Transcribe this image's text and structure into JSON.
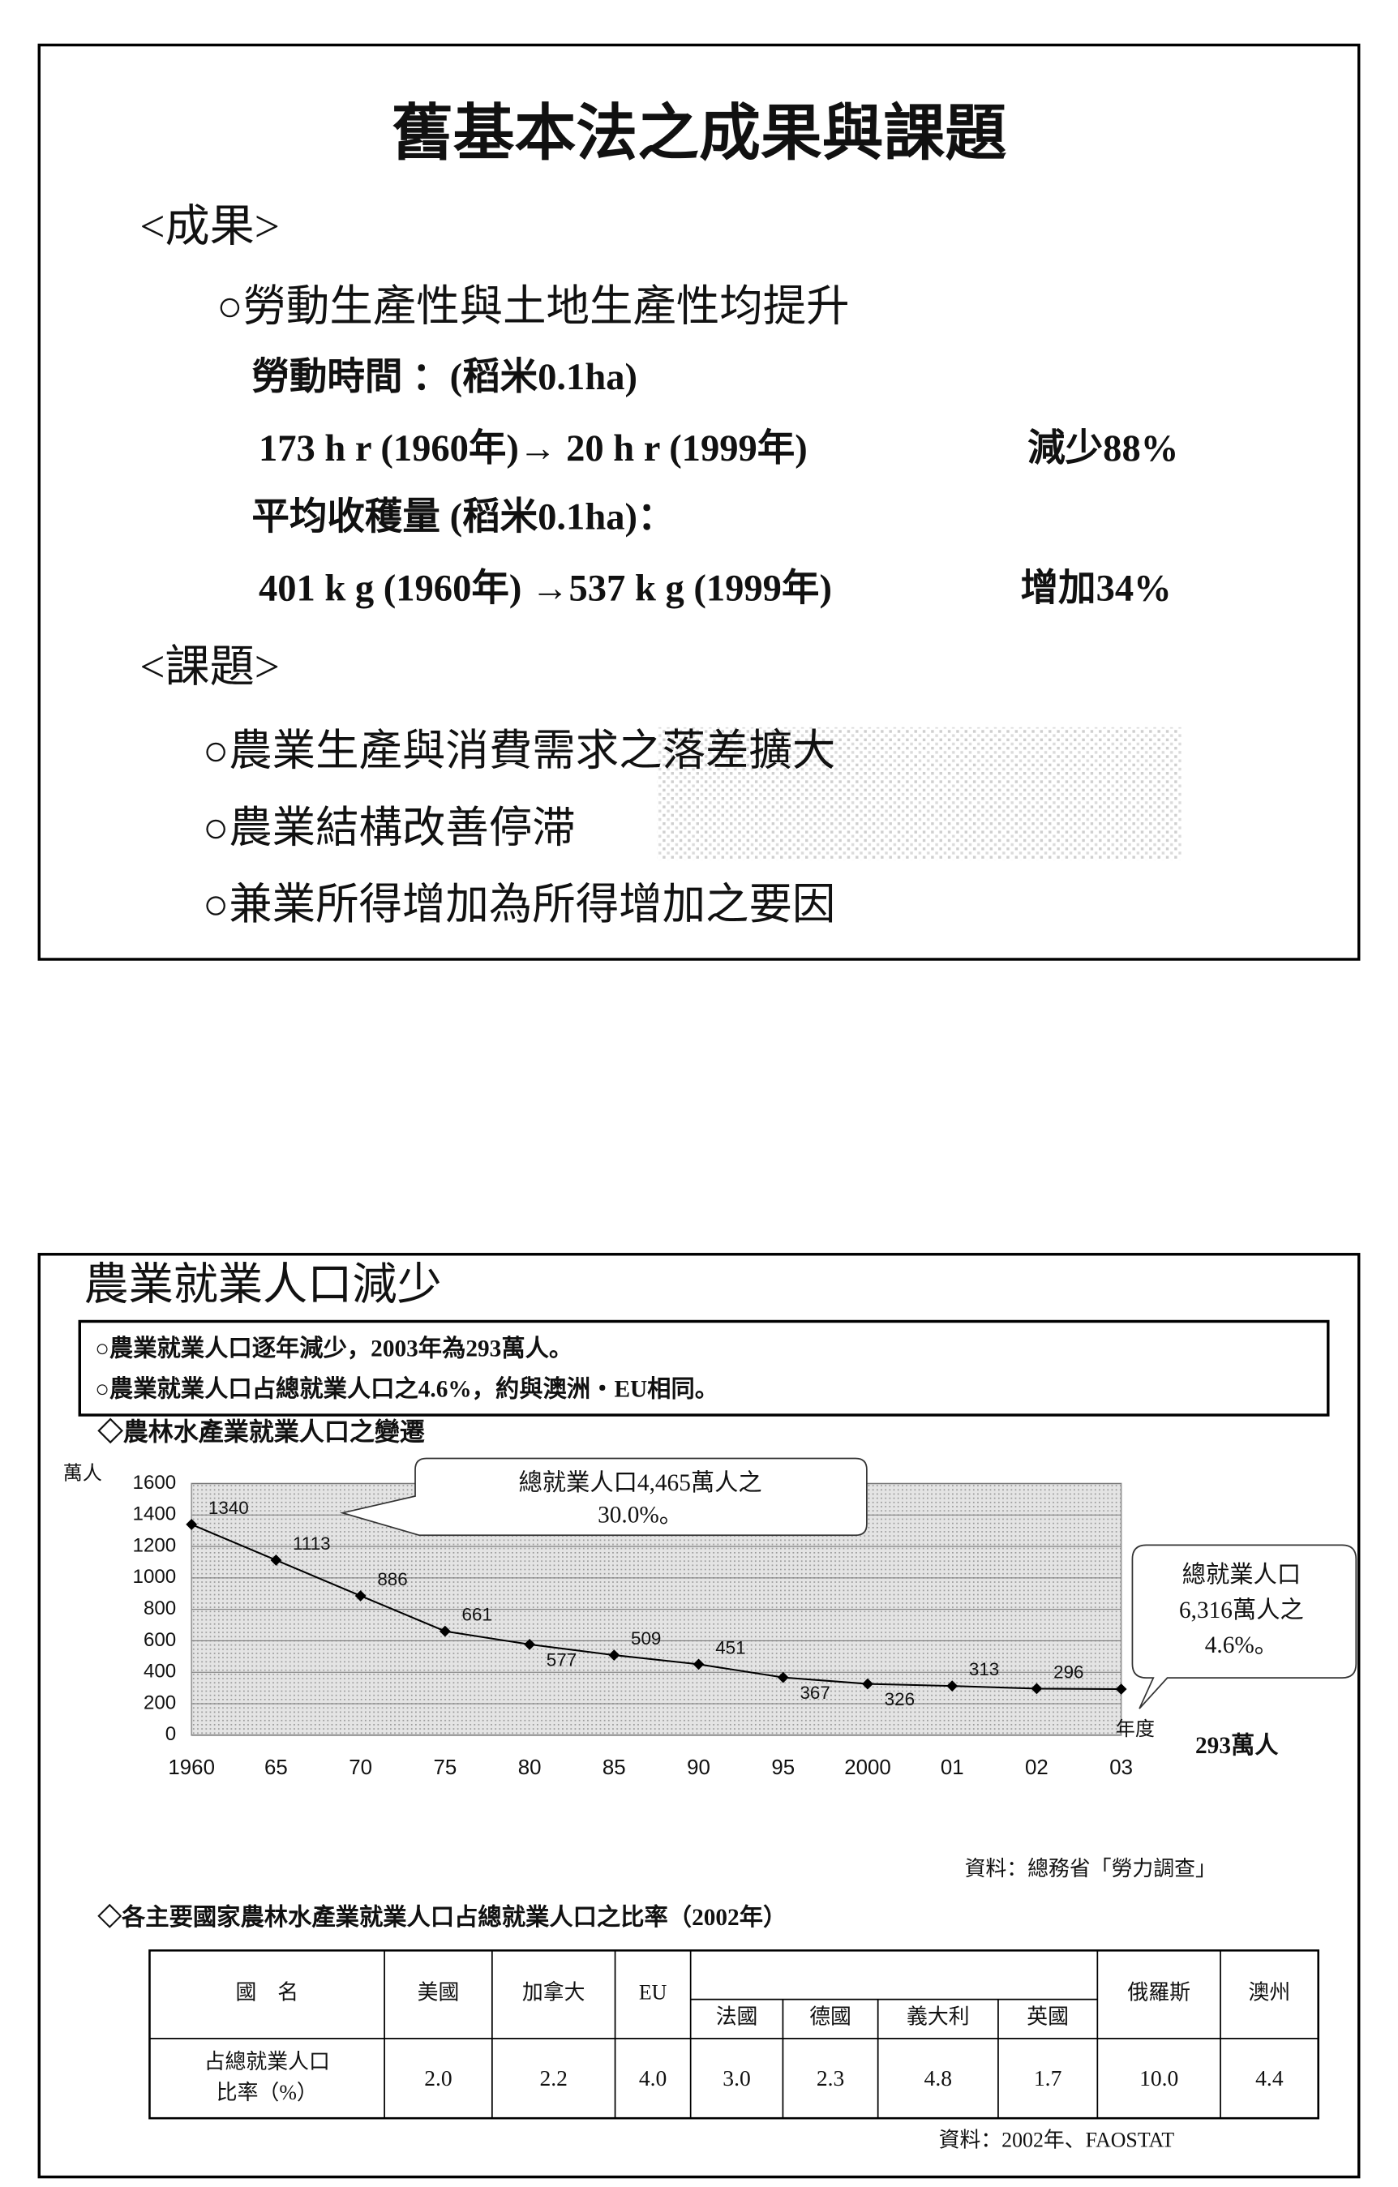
{
  "slide1": {
    "title": "舊基本法之成果與課題",
    "results": {
      "heading": "<成果>",
      "point": "○勞動生產性與土地生產性均提升",
      "lines": [
        "勞動時間 ：(稻米0.1ha)",
        "173 h r (1960年)→  20 h r (1999年)",
        "平均收穫量 (稻米0.1ha)：",
        "401 k g (1960年) →537 k g (1999年)"
      ],
      "changes": [
        "減少88%",
        "增加34%"
      ]
    },
    "issues": {
      "heading": "<課題>",
      "items": [
        "○農業生產與消費需求之落差擴大",
        "○農業結構改善停滞",
        "○兼業所得增加為所得增加之要因"
      ]
    }
  },
  "slide2": {
    "title": "農業就業人口減少",
    "bullets": [
      "○農業就業人口逐年減少，2003年為293萬人。",
      "○農業就業人口占總就業人口之4.6%，約與澳洲・EU相同。"
    ],
    "chart": {
      "type": "line",
      "title": "◇農林水產業就業人口之變遷",
      "y_label": "萬人",
      "x_label": "年度",
      "categories": [
        "1960",
        "65",
        "70",
        "75",
        "80",
        "85",
        "90",
        "95",
        "2000",
        "01",
        "02",
        "03"
      ],
      "values": [
        1340,
        1113,
        886,
        661,
        577,
        509,
        451,
        367,
        326,
        313,
        296,
        293
      ],
      "ylim": [
        0,
        1600
      ],
      "yticks": [
        0,
        200,
        400,
        600,
        800,
        1000,
        1200,
        1400,
        1600
      ],
      "grid": true,
      "color": "#000000",
      "callouts": [
        [
          "總就業人口4,465萬人之",
          "30.0%。"
        ],
        [
          "總就業人口",
          "6,316萬人之",
          "4.6%。"
        ]
      ],
      "end_label": "293萬人"
    },
    "chart_source": "資料：總務省「勞力調查」",
    "table": {
      "title": "◇各主要國家農林水產業就業人口占總就業人口之比率（2002年）",
      "header": [
        "國　名",
        "美國",
        "加拿大",
        "EU",
        "法國",
        "德國",
        "義大利",
        "英國",
        "俄羅斯",
        "澳州"
      ],
      "row_label": [
        "占總就業人口",
        "比率（%）"
      ],
      "row": [
        "2.0",
        "2.2",
        "4.0",
        "3.0",
        "2.3",
        "4.8",
        "1.7",
        "10.0",
        "4.4"
      ]
    },
    "table_source": "資料：2002年、FAOSTAT"
  }
}
